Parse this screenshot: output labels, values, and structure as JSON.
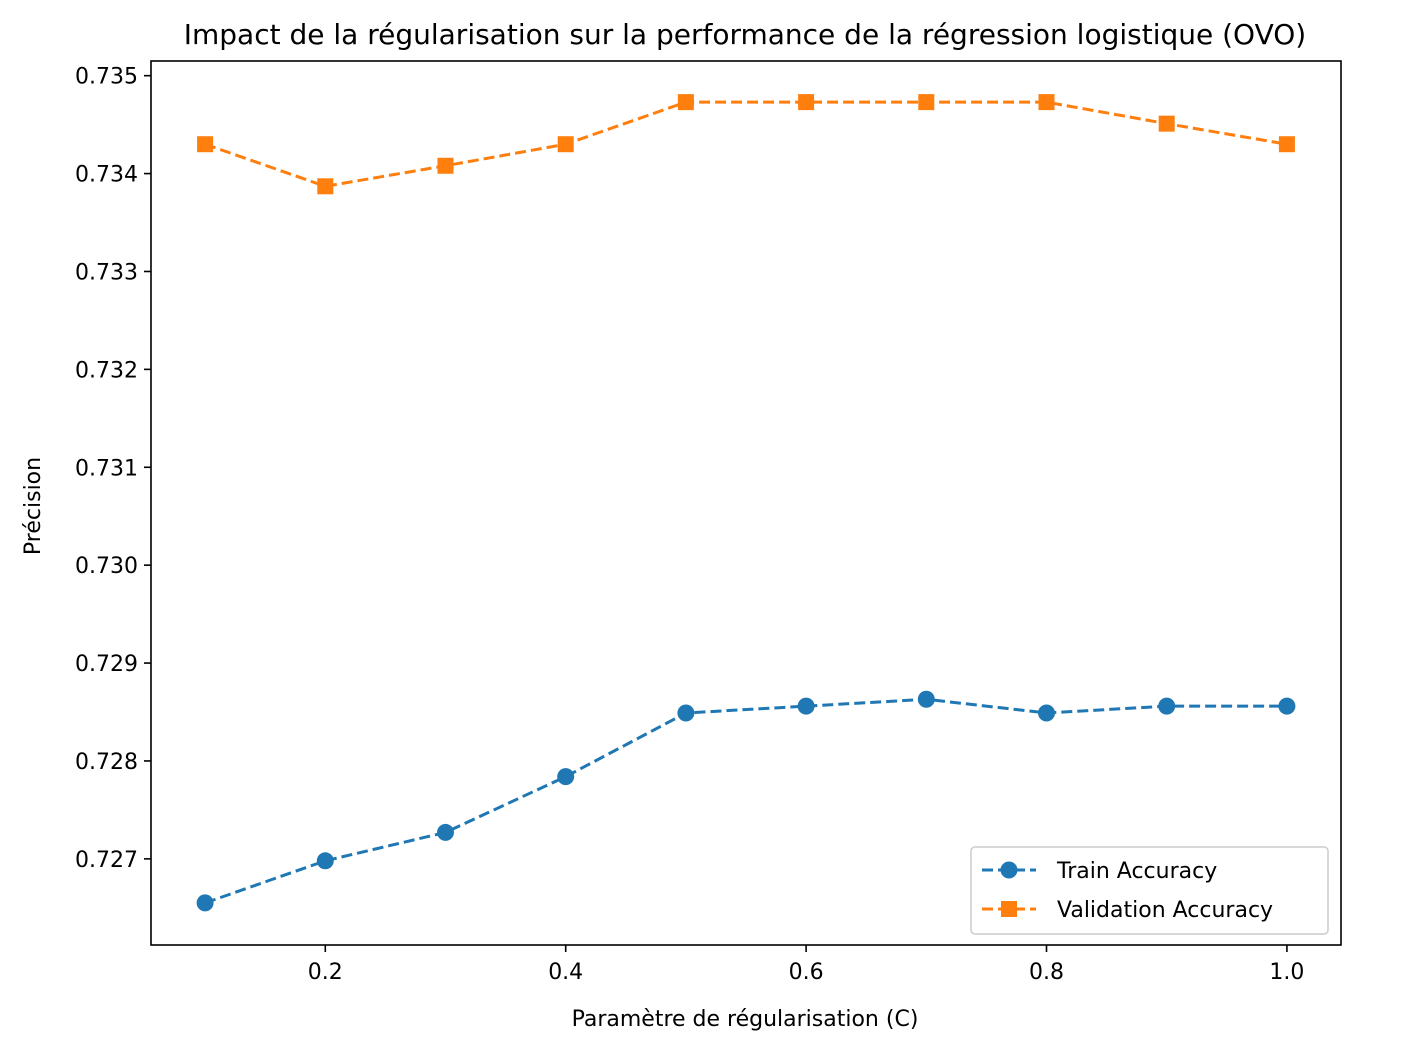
{
  "chart_data": {
    "type": "line",
    "title": "Impact de la régularisation sur la performance de la régression logistique (OVO)",
    "xlabel": "Paramètre de régularisation (C)",
    "ylabel": "Précision",
    "x": [
      0.1,
      0.2,
      0.3,
      0.4,
      0.5,
      0.6,
      0.7,
      0.8,
      0.9,
      1.0
    ],
    "xlim": [
      0.055,
      1.045
    ],
    "ylim": [
      0.72612,
      0.73515
    ],
    "xticks": [
      0.2,
      0.4,
      0.6,
      0.8,
      1.0
    ],
    "xtick_labels": [
      "0.2",
      "0.4",
      "0.6",
      "0.8",
      "1.0"
    ],
    "yticks": [
      0.727,
      0.728,
      0.729,
      0.73,
      0.731,
      0.732,
      0.733,
      0.734,
      0.735
    ],
    "ytick_labels": [
      "0.727",
      "0.728",
      "0.729",
      "0.730",
      "0.731",
      "0.732",
      "0.733",
      "0.734",
      "0.735"
    ],
    "grid": false,
    "legend_position": "bottom-right",
    "series": [
      {
        "name": "Train Accuracy",
        "color": "#1f77b4",
        "marker": "circle",
        "linestyle": "dashed",
        "values": [
          0.72655,
          0.72698,
          0.72727,
          0.72784,
          0.72849,
          0.72856,
          0.72863,
          0.72849,
          0.72856,
          0.72856
        ]
      },
      {
        "name": "Validation Accuracy",
        "color": "#ff7f0e",
        "marker": "square",
        "linestyle": "dashed",
        "values": [
          0.7343,
          0.73387,
          0.73408,
          0.7343,
          0.73473,
          0.73473,
          0.73473,
          0.73473,
          0.73451,
          0.7343
        ]
      }
    ]
  }
}
